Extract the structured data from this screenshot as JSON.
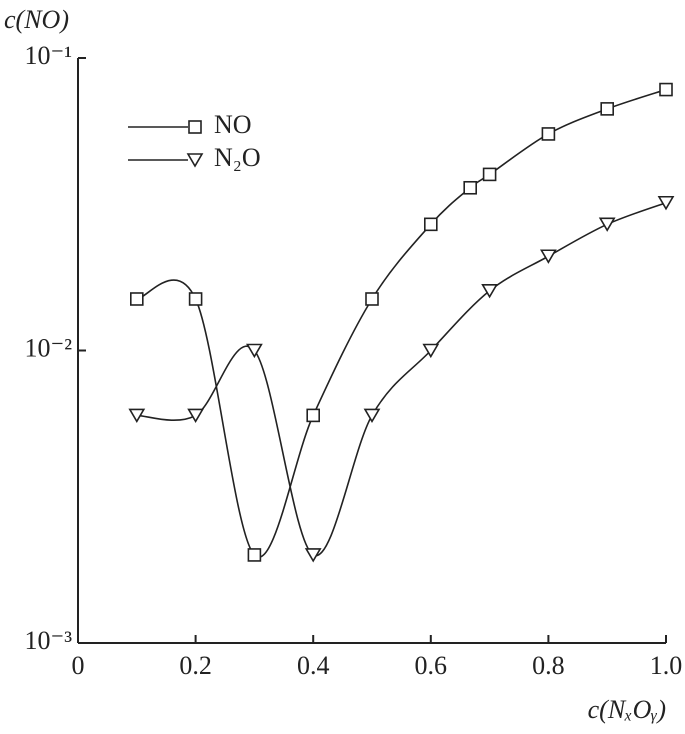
{
  "chart_data": {
    "type": "line",
    "x_label": "c(NₓOᵧ)",
    "y_label": "c(NO)",
    "xlim": [
      0,
      1.0
    ],
    "ylim": [
      0.001,
      0.1
    ],
    "log_y": true,
    "grid": false,
    "xticks": [
      0,
      0.2,
      0.4,
      0.6,
      0.8,
      {
        "value": 1.0,
        "label": "1.0"
      }
    ],
    "yticks": [
      {
        "value": 0.001,
        "label": "10⁻³"
      },
      {
        "value": 0.01,
        "label": "10⁻²"
      },
      {
        "value": 0.1,
        "label": "10⁻¹"
      }
    ],
    "legend_position": "upper left",
    "series": [
      {
        "name": "NO",
        "color": "#222222",
        "marker": "square",
        "x": [
          0.1,
          0.2,
          0.3,
          0.4,
          0.5,
          0.6,
          0.667,
          0.7,
          0.8,
          0.9,
          1.0
        ],
        "values": [
          0.015,
          0.015,
          0.002,
          0.006,
          0.015,
          0.027,
          0.036,
          0.04,
          0.055,
          0.067,
          0.078
        ]
      },
      {
        "name": "N₂O",
        "color": "#222222",
        "marker": "triangle-down",
        "x": [
          0.1,
          0.2,
          0.3,
          0.4,
          0.5,
          0.6,
          0.7,
          0.8,
          0.9,
          1.0
        ],
        "values": [
          0.006,
          0.006,
          0.01,
          0.002,
          0.006,
          0.01,
          0.016,
          0.021,
          0.027,
          0.032
        ]
      }
    ]
  }
}
